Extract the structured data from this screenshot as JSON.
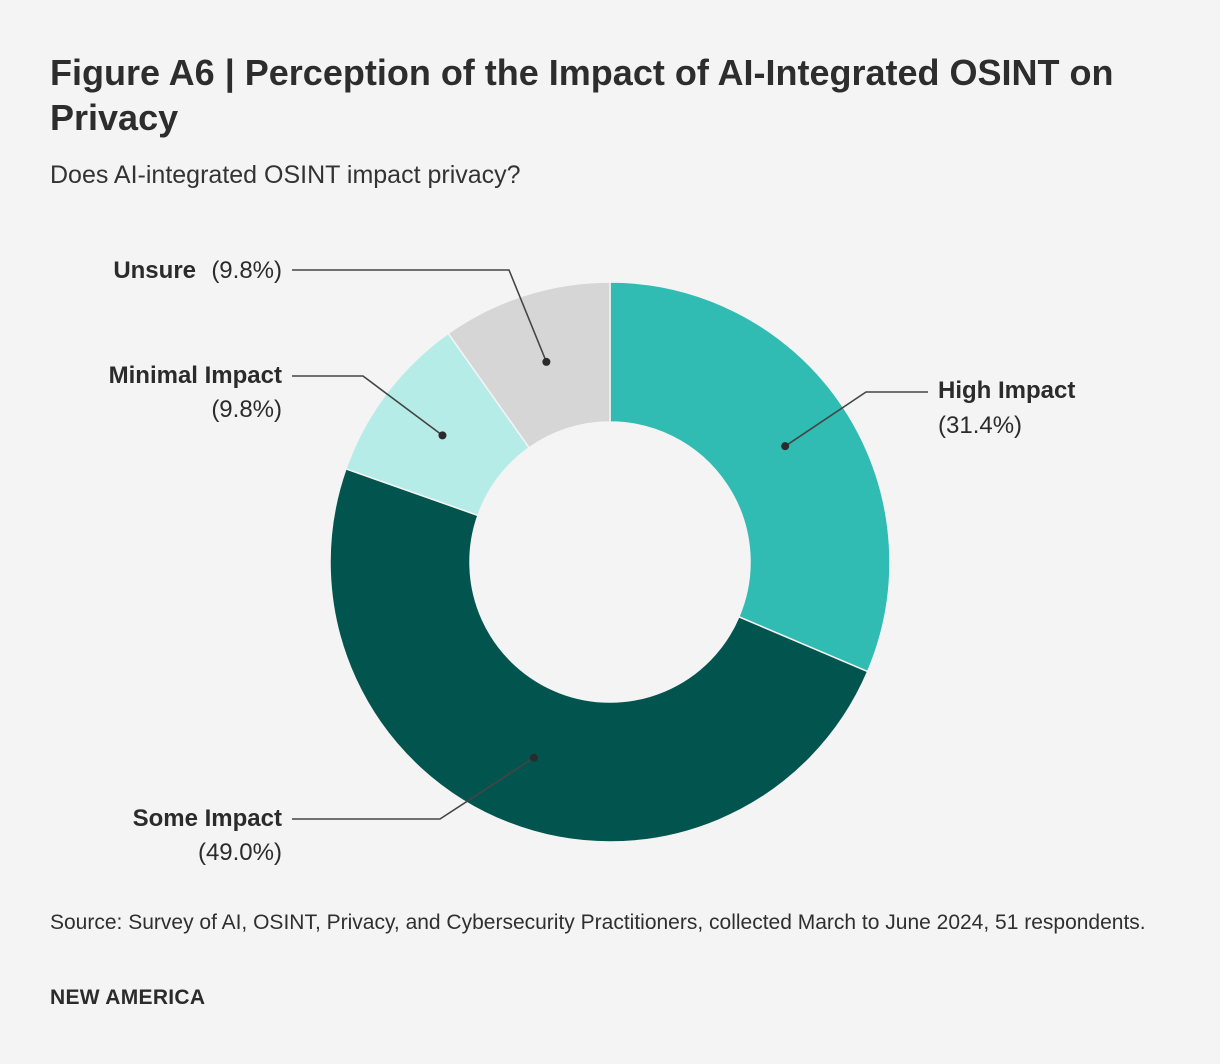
{
  "header": {
    "title": "Figure A6 | Perception of the Impact of AI-Integrated OSINT on Privacy",
    "subtitle": "Does AI-integrated OSINT impact privacy?"
  },
  "chart_data": {
    "type": "pie",
    "variant": "donut",
    "title": "Figure A6 | Perception of the Impact of AI-Integrated OSINT on Privacy",
    "subtitle": "Does AI-integrated OSINT impact privacy?",
    "unit": "%",
    "slices": [
      {
        "label": "High Impact",
        "value": 31.4,
        "display": "(31.4%)",
        "color": "#30bbb3"
      },
      {
        "label": "Some Impact",
        "value": 49.0,
        "display": "(49.0%)",
        "color": "#02554f"
      },
      {
        "label": "Minimal Impact",
        "value": 9.8,
        "display": "(9.8%)",
        "color": "#b6ece8"
      },
      {
        "label": "Unsure",
        "value": 9.8,
        "display": "(9.8%)",
        "color": "#d6d6d6"
      }
    ]
  },
  "footer": {
    "source": "Source: Survey of AI, OSINT, Privacy, and Cybersecurity Practitioners, collected March to June 2024, 51 respondents.",
    "brand": "NEW AMERICA"
  }
}
